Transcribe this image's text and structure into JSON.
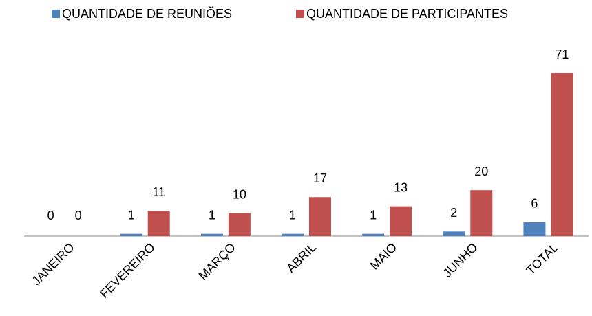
{
  "chart_data": {
    "type": "bar",
    "categories": [
      "JANEIRO",
      "FEVEREIRO",
      "MARÇO",
      "ABRIL",
      "MAIO",
      "JUNHO",
      "TOTAL"
    ],
    "series": [
      {
        "name": "QUANTIDADE DE REUNIÕES",
        "color": "#4f81bd",
        "values": [
          0,
          1,
          1,
          1,
          1,
          2,
          6
        ]
      },
      {
        "name": "QUANTIDADE DE PARTICIPANTES",
        "color": "#c0504d",
        "values": [
          0,
          11,
          10,
          17,
          13,
          20,
          71
        ]
      }
    ],
    "legend": "top"
  }
}
